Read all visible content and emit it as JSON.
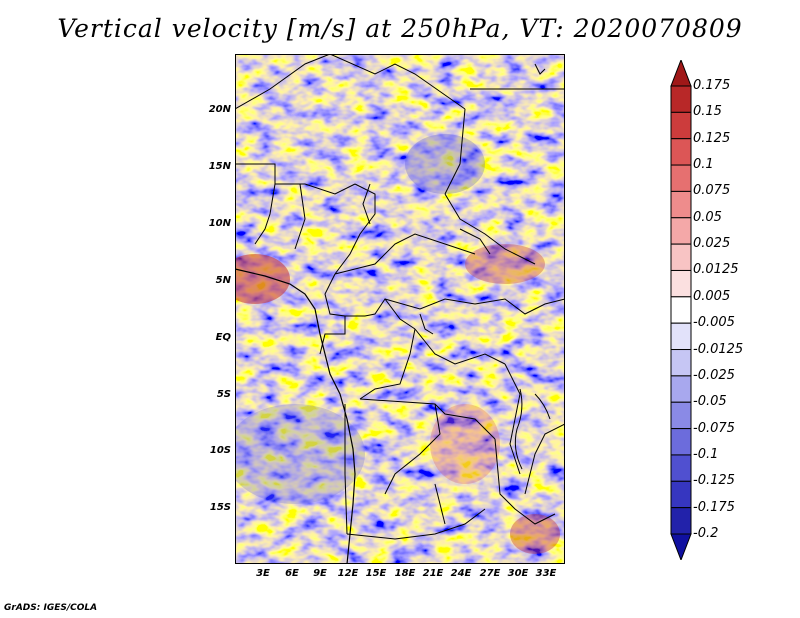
{
  "title": "Vertical velocity [m/s] at 250hPa, VT: 2020070809",
  "map": {
    "y_axis_labels": [
      "20N",
      "15N",
      "10N",
      "5N",
      "EQ",
      "5S",
      "10S",
      "15S"
    ],
    "x_axis_labels": [
      "3E",
      "6E",
      "9E",
      "12E",
      "15E",
      "18E",
      "21E",
      "24E",
      "27E",
      "30E",
      "33E"
    ],
    "lat_range": [
      -20,
      24
    ],
    "lon_range": [
      0,
      35
    ]
  },
  "colorbar": {
    "labels": [
      "0.175",
      "0.15",
      "0.125",
      "0.1",
      "0.075",
      "0.05",
      "0.025",
      "0.0125",
      "0.005",
      "-0.005",
      "-0.0125",
      "-0.025",
      "-0.05",
      "-0.075",
      "-0.1",
      "-0.125",
      "-0.175",
      "-0.2"
    ],
    "colors": [
      "#a01818",
      "#b82828",
      "#cc3c3c",
      "#dc5656",
      "#e67070",
      "#ee8c8c",
      "#f4a8a8",
      "#f8c4c4",
      "#fbe0e0",
      "#ffffff",
      "#e2e2fa",
      "#c6c6f4",
      "#a8a8ee",
      "#8a8ae6",
      "#6c6cdc",
      "#5050d0",
      "#3636c0",
      "#2222aa",
      "#1010a0"
    ]
  },
  "credit": "GrADS: IGES/COLA"
}
